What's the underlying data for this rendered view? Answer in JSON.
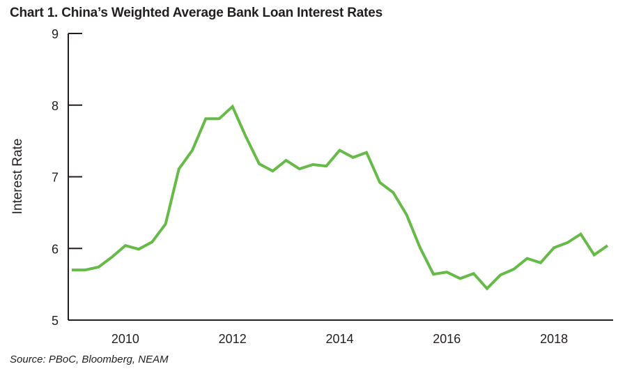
{
  "title": "Chart 1. China’s Weighted Average Bank Loan Interest Rates",
  "source": "Source: PBoC, Bloomberg, NEAM",
  "colors": {
    "line": "#66bb48",
    "axis": "#231f20"
  },
  "chart_data": {
    "type": "line",
    "title": "Chart 1. China’s Weighted Average Bank Loan Interest Rates",
    "xlabel": "",
    "ylabel": "Interest Rate",
    "xlim": [
      2009.0,
      2019.0
    ],
    "ylim": [
      5,
      9
    ],
    "x_ticks": [
      2010,
      2012,
      2014,
      2016,
      2018
    ],
    "x_tick_labels": [
      "2010",
      "2012",
      "2014",
      "2016",
      "2018"
    ],
    "y_ticks": [
      5,
      6,
      7,
      8,
      9
    ],
    "y_tick_labels": [
      "5",
      "6",
      "7",
      "8",
      "9"
    ],
    "grid": false,
    "legend": "none",
    "series": [
      {
        "x": [
          2009.0,
          2009.25,
          2009.5,
          2009.75,
          2010.0,
          2010.25,
          2010.5,
          2010.75,
          2011.0,
          2011.25,
          2011.5,
          2011.75,
          2012.0,
          2012.25,
          2012.5,
          2012.75,
          2013.0,
          2013.25,
          2013.5,
          2013.75,
          2014.0,
          2014.25,
          2014.5,
          2014.75,
          2015.0,
          2015.25,
          2015.5,
          2015.75,
          2016.0,
          2016.25,
          2016.5,
          2016.75,
          2017.0,
          2017.25,
          2017.5,
          2017.75,
          2018.0,
          2018.25,
          2018.5,
          2018.75,
          2019.0
        ],
        "values": [
          5.7,
          5.7,
          5.74,
          5.88,
          6.04,
          5.99,
          6.09,
          6.34,
          7.11,
          7.37,
          7.81,
          7.81,
          7.98,
          7.56,
          7.18,
          7.08,
          7.23,
          7.11,
          7.17,
          7.15,
          7.37,
          7.27,
          7.34,
          6.92,
          6.78,
          6.47,
          6.01,
          5.64,
          5.67,
          5.58,
          5.65,
          5.44,
          5.63,
          5.71,
          5.86,
          5.8,
          6.01,
          6.08,
          6.2,
          5.91,
          6.04
        ]
      }
    ]
  }
}
